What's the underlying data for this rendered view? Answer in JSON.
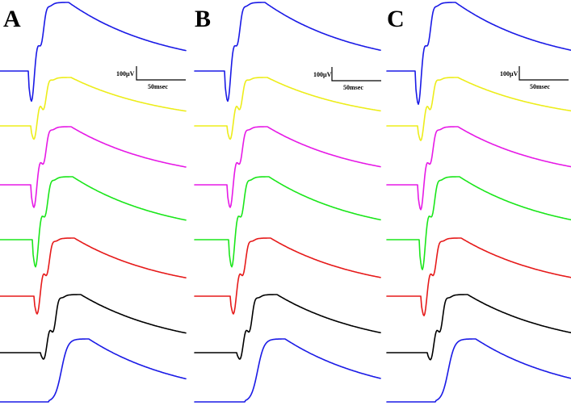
{
  "figure": {
    "panels": [
      {
        "label": "A",
        "scale": {
          "voltage": "100µV",
          "time": "50msec"
        }
      },
      {
        "label": "B",
        "scale": {
          "voltage": "100µV",
          "time": "50msec"
        }
      },
      {
        "label": "C",
        "scale": {
          "voltage": "100µV",
          "time": "50msec"
        }
      }
    ],
    "trace_colors": [
      "#1a1ae6",
      "#eded1a",
      "#e61ae6",
      "#1ae61a",
      "#e61a1a",
      "#000000",
      "#1a1ae6"
    ]
  }
}
